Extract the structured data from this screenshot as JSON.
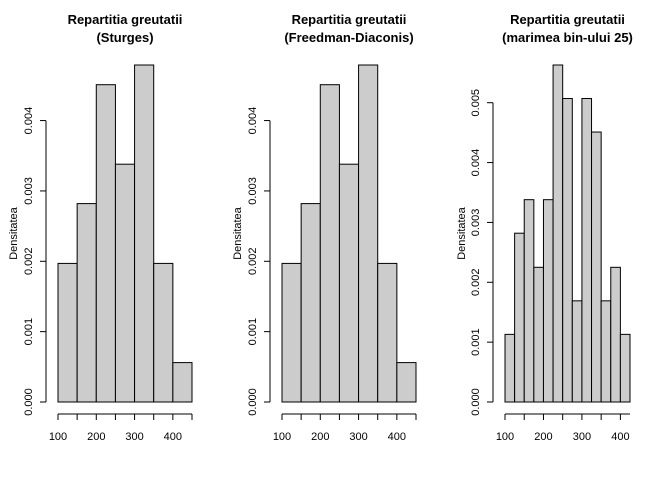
{
  "chart_data": [
    {
      "type": "bar",
      "title_line1": "Repartitia greutatii",
      "title_line2": "(Sturges)",
      "ylabel": "Densitatea",
      "xlabel": "",
      "bin_edges": [
        100,
        150,
        200,
        250,
        300,
        350,
        400,
        450
      ],
      "values": [
        0.00197,
        0.00282,
        0.00451,
        0.00338,
        0.00479,
        0.00197,
        0.00056
      ],
      "x_ticks": [
        100,
        200,
        300,
        400
      ],
      "x_tick_labels": [
        "100",
        "200",
        "300",
        "400"
      ],
      "xlim": [
        100,
        450
      ],
      "y_ticks": [
        0.0,
        0.001,
        0.002,
        0.003,
        0.004
      ],
      "y_tick_labels": [
        "0.000",
        "0.001",
        "0.002",
        "0.003",
        "0.004"
      ],
      "ylim": [
        0,
        0.00479
      ]
    },
    {
      "type": "bar",
      "title_line1": "Repartitia greutatii",
      "title_line2": "(Freedman-Diaconis)",
      "ylabel": "Densitatea",
      "xlabel": "",
      "bin_edges": [
        100,
        150,
        200,
        250,
        300,
        350,
        400,
        450
      ],
      "values": [
        0.00197,
        0.00282,
        0.00451,
        0.00338,
        0.00479,
        0.00197,
        0.00056
      ],
      "x_ticks": [
        100,
        200,
        300,
        400
      ],
      "x_tick_labels": [
        "100",
        "200",
        "300",
        "400"
      ],
      "xlim": [
        100,
        450
      ],
      "y_ticks": [
        0.0,
        0.001,
        0.002,
        0.003,
        0.004
      ],
      "y_tick_labels": [
        "0.000",
        "0.001",
        "0.002",
        "0.003",
        "0.004"
      ],
      "ylim": [
        0,
        0.00479
      ]
    },
    {
      "type": "bar",
      "title_line1": "Repartitia greutatii",
      "title_line2": "(marimea bin-ului 25)",
      "ylabel": "Densitatea",
      "xlabel": "",
      "bin_edges": [
        100,
        125,
        150,
        175,
        200,
        225,
        250,
        275,
        300,
        325,
        350,
        375,
        400,
        425
      ],
      "values": [
        0.00113,
        0.00282,
        0.00338,
        0.00225,
        0.00338,
        0.00563,
        0.00507,
        0.00169,
        0.00507,
        0.00451,
        0.00169,
        0.00225,
        0.00113
      ],
      "x_ticks": [
        100,
        200,
        300,
        400
      ],
      "x_tick_labels": [
        "100",
        "200",
        "300",
        "400"
      ],
      "xlim": [
        100,
        425
      ],
      "y_ticks": [
        0.0,
        0.001,
        0.002,
        0.003,
        0.004,
        0.005
      ],
      "y_tick_labels": [
        "0.000",
        "0.001",
        "0.002",
        "0.003",
        "0.004",
        "0.005"
      ],
      "ylim": [
        0,
        0.00563
      ]
    }
  ]
}
